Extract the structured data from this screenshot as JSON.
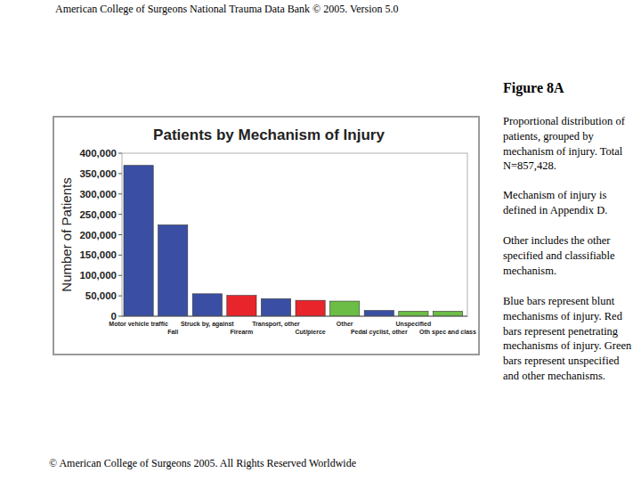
{
  "page": {
    "header": "American College of Surgeons National Trauma Data Bank © 2005. Version 5.0",
    "figure_label": "Figure 8A",
    "caption": [
      "Proportional distribution of patients, grouped by mechanism of injury. Total N=857,428.",
      "Mechanism of injury is defined in Appendix D.",
      "Other includes the other specified and classifiable mechanism.",
      "Blue bars represent blunt mechanisms of injury. Red bars represent penetrating mechanisms of injury.  Green bars represent unspecified and other mechanisms."
    ],
    "footer": "© American College of Surgeons 2005. All Rights Reserved Worldwide"
  },
  "chart_data": {
    "type": "bar",
    "title": "Patients by Mechanism of Injury",
    "y_label": "Number of Patients",
    "categories": [
      "Motor vehicle traffic",
      "Fall",
      "Struck by, against",
      "Firearm",
      "Transport, other",
      "Cut/pierce",
      "Other",
      "Pedal cyclist, other",
      "Unspecified",
      "Oth spec and class"
    ],
    "values": [
      370000,
      224000,
      55000,
      51000,
      43000,
      39000,
      37000,
      14000,
      12000,
      12000
    ],
    "colors": [
      "#3a4fa3",
      "#3a4fa3",
      "#3a4fa3",
      "#e8252b",
      "#3a4fa3",
      "#e8252b",
      "#6cbd45",
      "#3a4fa3",
      "#6cbd45",
      "#6cbd45"
    ],
    "ylim": [
      0,
      400000
    ],
    "yticks": [
      0,
      {
        "value": 50000,
        "label": "50,000"
      },
      {
        "value": 100000,
        "label": "100,000"
      },
      {
        "value": 150000,
        "label": "150,000"
      },
      {
        "value": 200000,
        "label": "200,000"
      },
      {
        "value": 250000,
        "label": "250,000"
      },
      {
        "value": 300000,
        "label": "300,000"
      },
      {
        "value": 350000,
        "label": "350,000"
      },
      {
        "value": 400000,
        "label": "400,000"
      }
    ],
    "grid": false
  }
}
